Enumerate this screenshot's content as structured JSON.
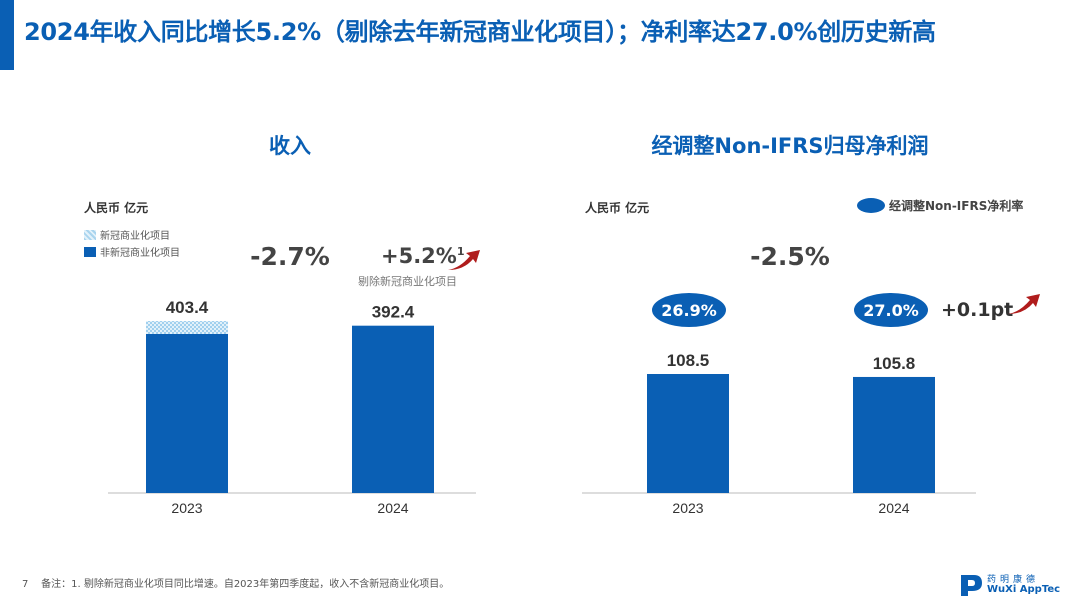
{
  "header": {
    "title": "2024年收入同比增长5.2%（剔除去年新冠商业化项目）；净利率达27.0%创历史新高"
  },
  "colors": {
    "accent": "#0a5fb4",
    "arrow": "#b01c1c"
  },
  "chart_data": [
    {
      "type": "bar",
      "title": "收入",
      "ylabel": "人民币 亿元",
      "categories": [
        "2023",
        "2024"
      ],
      "series": [
        {
          "name": "非新冠商业化项目",
          "values": [
            373.0,
            392.4
          ]
        },
        {
          "name": "新冠商业化项目",
          "values": [
            30.4,
            0
          ]
        }
      ],
      "totals": [
        "403.4",
        "392.4"
      ],
      "stacked": true,
      "ylim": [
        0,
        405
      ],
      "grid": false,
      "legend": "top-left",
      "annotations": {
        "yoy": "-2.7%",
        "adj_growth": "+5.2%",
        "adj_growth_sup": "1",
        "adj_note": "剔除新冠商业化项目"
      }
    },
    {
      "type": "bar",
      "title": "经调整Non-IFRS归母净利润",
      "ylabel": "人民币 亿元",
      "categories": [
        "2023",
        "2024"
      ],
      "series": [
        {
          "values": [
            108.5,
            105.8
          ]
        }
      ],
      "labels": [
        "108.5",
        "105.8"
      ],
      "ylim": [
        0,
        155
      ],
      "grid": false,
      "legend": "top-right",
      "margin_legend": "经调整Non-IFRS净利率",
      "margins": [
        "26.9%",
        "27.0%"
      ],
      "annotations": {
        "yoy": "-2.5%",
        "margin_change": "+0.1pt"
      }
    }
  ],
  "footer": {
    "page": "7",
    "note": "备注：1. 剔除新冠商业化项目同比增速。自2023年第四季度起，收入不含新冠商业化项目。"
  },
  "logo": {
    "cn": "药明康德",
    "en": "WuXi AppTec"
  }
}
